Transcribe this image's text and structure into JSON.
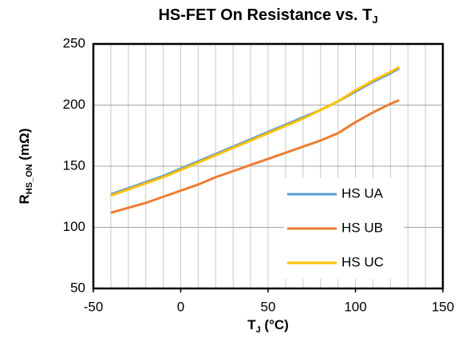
{
  "chart_data": {
    "type": "line",
    "title": [
      "HS-FET On Resistance vs. T",
      "J"
    ],
    "ylabel": [
      "R",
      "HS_ON",
      " (mΩ)"
    ],
    "xlabel": [
      "T",
      "J",
      " (°C)"
    ],
    "x": [
      -40,
      -30,
      -20,
      -10,
      0,
      10,
      20,
      30,
      40,
      50,
      60,
      70,
      80,
      90,
      100,
      110,
      120,
      125
    ],
    "series": [
      {
        "name": "HS UA",
        "color": "#5b9bd5",
        "values": [
          127,
          132,
          137,
          142,
          148,
          154,
          160,
          166,
          172,
          178,
          184,
          190,
          196,
          203,
          211,
          219,
          226,
          230
        ]
      },
      {
        "name": "HS UB",
        "color": "#ed7d31",
        "values": [
          112,
          116,
          120,
          125,
          130,
          135,
          141,
          146,
          151,
          156,
          161,
          166,
          171,
          177,
          186,
          194,
          201,
          204
        ]
      },
      {
        "name": "HS UC",
        "color": "#ffc000",
        "values": [
          126,
          131,
          136,
          141,
          147,
          153,
          159,
          165,
          171,
          177,
          183,
          189,
          196,
          203,
          212,
          220,
          227,
          231
        ]
      }
    ],
    "xlim": [
      -50,
      150
    ],
    "xticks": [
      -50,
      0,
      50,
      100,
      150
    ],
    "xgrid": [
      -40,
      -30,
      -20,
      -10,
      0,
      10,
      20,
      30,
      40,
      50,
      60,
      70,
      80,
      90,
      100,
      110,
      120,
      130,
      140
    ],
    "ylim": [
      50,
      250
    ],
    "yticks": [
      50,
      100,
      150,
      200,
      250
    ],
    "grid": true,
    "legend": "lower right"
  }
}
